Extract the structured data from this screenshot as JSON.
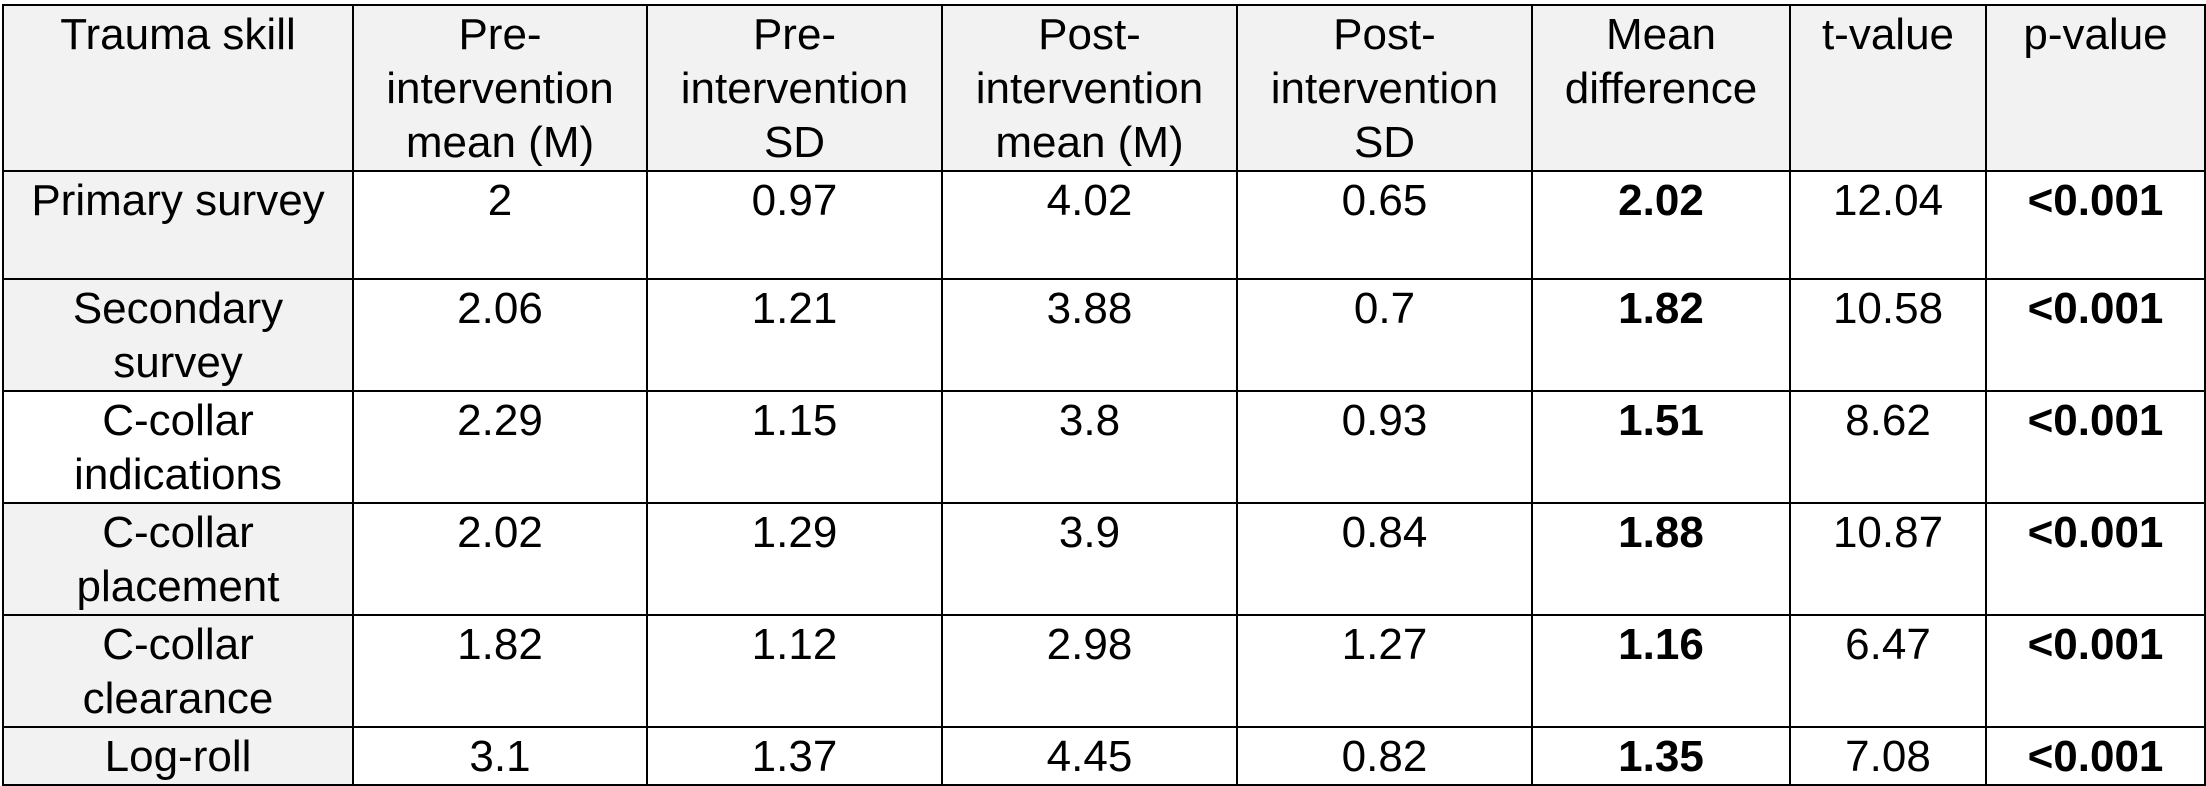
{
  "table": {
    "headers": [
      "Trauma skill",
      "Pre-\nintervention\nmean (M)",
      "Pre-\nintervention\nSD",
      "Post-\nintervention\nmean (M)",
      "Post-\nintervention\nSD",
      "Mean\ndifference",
      "t-value",
      "p-value"
    ],
    "rows": [
      {
        "skill": "Primary survey",
        "pre_mean": "2",
        "pre_sd": "0.97",
        "post_mean": "4.02",
        "post_sd": "0.65",
        "mean_diff": "2.02",
        "t_value": "12.04",
        "p_value": "<0.001"
      },
      {
        "skill": "Secondary survey",
        "pre_mean": "2.06",
        "pre_sd": "1.21",
        "post_mean": "3.88",
        "post_sd": "0.7",
        "mean_diff": "1.82",
        "t_value": "10.58",
        "p_value": "<0.001"
      },
      {
        "skill": "C-collar indications",
        "pre_mean": "2.29",
        "pre_sd": "1.15",
        "post_mean": "3.8",
        "post_sd": "0.93",
        "mean_diff": "1.51",
        "t_value": "8.62",
        "p_value": "<0.001"
      },
      {
        "skill": "C-collar placement",
        "pre_mean": "2.02",
        "pre_sd": "1.29",
        "post_mean": "3.9",
        "post_sd": "0.84",
        "mean_diff": "1.88",
        "t_value": "10.87",
        "p_value": "<0.001"
      },
      {
        "skill": "C-collar clearance",
        "pre_mean": "1.82",
        "pre_sd": "1.12",
        "post_mean": "2.98",
        "post_sd": "1.27",
        "mean_diff": "1.16",
        "t_value": "6.47",
        "p_value": "<0.001"
      },
      {
        "skill": "Log-roll",
        "pre_mean": "3.1",
        "pre_sd": "1.37",
        "post_mean": "4.45",
        "post_sd": "0.82",
        "mean_diff": "1.35",
        "t_value": "7.08",
        "p_value": "<0.001"
      }
    ]
  },
  "colors": {
    "header_background": "#f2f2f2",
    "border": "#000000",
    "text": "#000000"
  }
}
